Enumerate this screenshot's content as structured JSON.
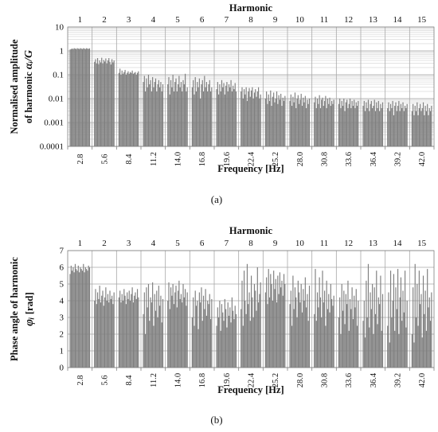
{
  "chart_data": [
    {
      "panel_label": "(a)",
      "panel_letter": "a",
      "type": "bar",
      "top_axis_title": "Harmonic",
      "harmonics": [
        "1",
        "2",
        "3",
        "4",
        "5",
        "6",
        "7",
        "8",
        "9",
        "10",
        "11",
        "12",
        "13",
        "14",
        "15"
      ],
      "xlabel": "Frequency [Hz]",
      "x_ticks": [
        "2.8",
        "5.6",
        "8.4",
        "11.2",
        "14.0",
        "16.8",
        "19.6",
        "22.4",
        "25.2",
        "28.0",
        "30.8",
        "33.6",
        "36.4",
        "39.2",
        "42.0"
      ],
      "ylabel_line1": "Normalised amplitude",
      "ylabel_line2_text": "of harmonic",
      "ylabel_symbol": "αᵢ/G",
      "y_scale": "log",
      "ylim": [
        0.0001,
        10
      ],
      "y_ticks": [
        "0.0001",
        "0.001",
        "0.01",
        "0.1",
        "1",
        "10"
      ],
      "grid": true,
      "bar_color": "#7f7f7f",
      "values_per_harmonic": [
        [
          1.15,
          1.2,
          1.25,
          1.2,
          1.3,
          1.25,
          1.2,
          1.3,
          1.25,
          1.2,
          1.3,
          1.25,
          1.2,
          1.3,
          1.25,
          1.2,
          1.3,
          1.25,
          1.22,
          1.28
        ],
        [
          0.35,
          0.45,
          0.3,
          0.5,
          0.28,
          0.4,
          0.33,
          0.52,
          0.3,
          0.42,
          0.36,
          0.48,
          0.3,
          0.4,
          0.5,
          0.35,
          0.27,
          0.45,
          0.33,
          0.4
        ],
        [
          0.12,
          0.18,
          0.1,
          0.15,
          0.11,
          0.13,
          0.16,
          0.1,
          0.12,
          0.14,
          0.11,
          0.13,
          0.12,
          0.15,
          0.11,
          0.12,
          0.13,
          0.1,
          0.12,
          0.14
        ],
        [
          0.05,
          0.09,
          0.02,
          0.07,
          0.03,
          0.1,
          0.04,
          0.06,
          0.02,
          0.08,
          0.03,
          0.05,
          0.07,
          0.02,
          0.04,
          0.06,
          0.03,
          0.05,
          0.02,
          0.04
        ],
        [
          0.04,
          0.08,
          0.015,
          0.06,
          0.03,
          0.1,
          0.02,
          0.05,
          0.07,
          0.02,
          0.04,
          0.09,
          0.03,
          0.05,
          0.02,
          0.06,
          0.04,
          0.11,
          0.02,
          0.03
        ],
        [
          0.03,
          0.06,
          0.015,
          0.08,
          0.02,
          0.05,
          0.03,
          0.07,
          0.01,
          0.04,
          0.06,
          0.02,
          0.09,
          0.03,
          0.05,
          0.02,
          0.04,
          0.06,
          0.02,
          0.03
        ],
        [
          0.025,
          0.05,
          0.015,
          0.04,
          0.02,
          0.06,
          0.03,
          0.045,
          0.015,
          0.035,
          0.05,
          0.02,
          0.04,
          0.03,
          0.06,
          0.02,
          0.035,
          0.025,
          0.045,
          0.02
        ],
        [
          0.02,
          0.03,
          0.01,
          0.025,
          0.015,
          0.03,
          0.008,
          0.02,
          0.028,
          0.012,
          0.022,
          0.03,
          0.01,
          0.018,
          0.025,
          0.012,
          0.02,
          0.03,
          0.01,
          0.015
        ],
        [
          0.01,
          0.02,
          0.006,
          0.015,
          0.008,
          0.022,
          0.005,
          0.012,
          0.018,
          0.007,
          0.01,
          0.02,
          0.006,
          0.014,
          0.009,
          0.016,
          0.005,
          0.011,
          0.008,
          0.013
        ],
        [
          0.008,
          0.015,
          0.005,
          0.012,
          0.007,
          0.018,
          0.004,
          0.01,
          0.014,
          0.006,
          0.009,
          0.016,
          0.005,
          0.011,
          0.007,
          0.013,
          0.004,
          0.009,
          0.006,
          0.01
        ],
        [
          0.007,
          0.012,
          0.004,
          0.01,
          0.006,
          0.014,
          0.004,
          0.009,
          0.011,
          0.005,
          0.008,
          0.013,
          0.004,
          0.01,
          0.006,
          0.011,
          0.005,
          0.008,
          0.006,
          0.009
        ],
        [
          0.006,
          0.01,
          0.004,
          0.008,
          0.005,
          0.01,
          0.003,
          0.007,
          0.009,
          0.004,
          0.006,
          0.01,
          0.004,
          0.008,
          0.005,
          0.009,
          0.004,
          0.007,
          0.005,
          0.008
        ],
        [
          0.005,
          0.008,
          0.003,
          0.007,
          0.004,
          0.009,
          0.003,
          0.006,
          0.008,
          0.004,
          0.005,
          0.009,
          0.003,
          0.007,
          0.004,
          0.008,
          0.003,
          0.006,
          0.004,
          0.007
        ],
        [
          0.004,
          0.007,
          0.003,
          0.006,
          0.004,
          0.008,
          0.002,
          0.005,
          0.007,
          0.003,
          0.005,
          0.008,
          0.003,
          0.006,
          0.004,
          0.007,
          0.003,
          0.005,
          0.004,
          0.006
        ],
        [
          0.003,
          0.006,
          0.002,
          0.005,
          0.003,
          0.007,
          0.002,
          0.004,
          0.006,
          0.003,
          0.004,
          0.007,
          0.002,
          0.005,
          0.003,
          0.006,
          0.002,
          0.004,
          0.003,
          0.005
        ]
      ]
    },
    {
      "panel_label": "(b)",
      "panel_letter": "b",
      "type": "bar",
      "top_axis_title": "Harmonic",
      "harmonics": [
        "1",
        "2",
        "3",
        "4",
        "5",
        "6",
        "7",
        "8",
        "9",
        "10",
        "11",
        "12",
        "13",
        "14",
        "15"
      ],
      "xlabel": "Frequency [Hz]",
      "x_ticks": [
        "2.8",
        "5.6",
        "8.4",
        "11.2",
        "14.0",
        "16.8",
        "19.6",
        "22.4",
        "25.2",
        "28.0",
        "30.8",
        "33.6",
        "36.4",
        "39.2",
        "42.0"
      ],
      "ylabel_line1": "Phase angle of harmonic",
      "ylabel_symbol": "φᵢ",
      "ylabel_unit": "[rad]",
      "y_scale": "linear",
      "ylim": [
        0,
        7
      ],
      "y_ticks": [
        "0",
        "1",
        "2",
        "3",
        "4",
        "5",
        "6",
        "7"
      ],
      "grid": true,
      "bar_color": "#7f7f7f",
      "values_per_harmonic": [
        [
          5.6,
          6.1,
          5.8,
          6.0,
          5.7,
          6.2,
          5.9,
          5.8,
          6.1,
          5.7,
          6.0,
          5.9,
          5.8,
          6.2,
          5.7,
          6.0,
          5.9,
          5.8,
          6.1,
          6.0
        ],
        [
          4.0,
          4.7,
          3.8,
          4.5,
          4.1,
          4.9,
          3.9,
          4.3,
          4.6,
          3.7,
          4.2,
          4.8,
          4.0,
          4.4,
          3.9,
          4.6,
          4.1,
          4.3,
          3.8,
          4.5
        ],
        [
          4.2,
          4.6,
          3.9,
          4.4,
          4.0,
          4.7,
          4.3,
          3.8,
          4.5,
          4.1,
          4.6,
          4.0,
          4.4,
          4.8,
          3.9,
          4.3,
          4.5,
          4.1,
          4.7,
          4.2
        ],
        [
          3.2,
          4.5,
          2.0,
          4.8,
          3.6,
          5.0,
          2.8,
          4.2,
          3.9,
          5.1,
          2.5,
          4.4,
          3.4,
          4.6,
          3.0,
          4.9,
          3.7,
          4.3,
          2.7,
          4.1
        ],
        [
          4.0,
          5.1,
          3.5,
          4.8,
          4.3,
          5.0,
          3.8,
          4.5,
          4.9,
          3.6,
          4.6,
          5.2,
          4.1,
          4.4,
          3.9,
          5.0,
          4.2,
          4.7,
          3.7,
          4.5
        ],
        [
          3.0,
          4.2,
          2.5,
          4.6,
          3.7,
          4.0,
          2.3,
          4.5,
          3.9,
          4.8,
          2.8,
          4.3,
          3.5,
          4.7,
          3.1,
          4.0,
          3.8,
          4.4,
          2.9,
          4.1
        ],
        [
          2.5,
          3.6,
          3.0,
          4.0,
          2.2,
          3.8,
          3.3,
          2.8,
          4.1,
          3.5,
          2.4,
          3.9,
          3.1,
          3.6,
          2.7,
          4.2,
          3.4,
          2.9,
          3.7,
          3.2
        ],
        [
          3.5,
          5.2,
          2.5,
          5.8,
          4.0,
          3.2,
          6.2,
          3.8,
          4.5,
          2.8,
          5.5,
          4.2,
          3.0,
          5.0,
          4.6,
          3.4,
          6.0,
          3.9,
          4.4,
          5.1
        ],
        [
          4.5,
          5.4,
          3.8,
          5.9,
          4.2,
          5.6,
          5.0,
          4.0,
          5.8,
          4.7,
          5.3,
          3.9,
          5.5,
          4.4,
          5.7,
          4.8,
          5.2,
          4.3,
          5.6,
          5.0
        ],
        [
          3.8,
          4.6,
          2.5,
          5.5,
          3.5,
          4.8,
          4.2,
          3.0,
          5.2,
          4.5,
          3.9,
          5.0,
          3.3,
          4.7,
          4.0,
          5.4,
          3.6,
          4.4,
          2.8,
          4.9
        ],
        [
          3.2,
          5.9,
          2.8,
          4.5,
          3.6,
          5.4,
          4.2,
          3.0,
          5.8,
          3.9,
          4.6,
          2.5,
          5.2,
          3.5,
          4.4,
          3.3,
          5.0,
          4.1,
          3.7,
          4.3
        ],
        [
          3.0,
          4.2,
          2.0,
          5.0,
          3.4,
          4.6,
          2.6,
          4.4,
          3.8,
          5.2,
          2.2,
          4.1,
          3.5,
          4.8,
          2.9,
          4.3,
          3.6,
          4.7,
          2.5,
          4.0
        ],
        [
          2.8,
          4.0,
          1.8,
          5.2,
          3.0,
          6.2,
          2.4,
          4.5,
          3.5,
          5.0,
          2.0,
          4.8,
          3.2,
          5.8,
          2.6,
          4.2,
          3.8,
          5.5,
          2.2,
          4.4
        ],
        [
          2.5,
          4.5,
          1.5,
          5.8,
          3.0,
          4.0,
          5.6,
          2.2,
          4.8,
          3.5,
          5.9,
          2.0,
          4.2,
          5.4,
          2.8,
          4.6,
          3.3,
          5.8,
          2.4,
          4.0
        ],
        [
          2.0,
          4.8,
          1.5,
          6.2,
          3.0,
          5.0,
          2.5,
          5.8,
          3.8,
          4.4,
          1.8,
          5.5,
          3.2,
          4.6,
          2.2,
          5.9,
          3.6,
          4.2,
          2.8,
          4.5
        ]
      ]
    }
  ]
}
